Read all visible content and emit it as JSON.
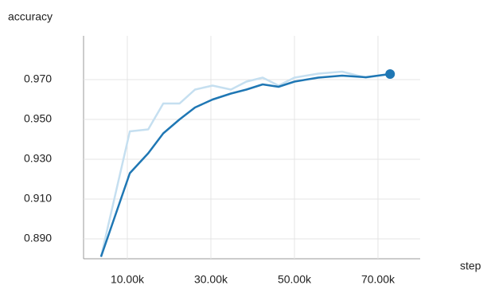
{
  "chart_data": {
    "type": "line",
    "title": "accuracy",
    "xlabel": "step",
    "x": [
      3700,
      10600,
      15000,
      18600,
      22500,
      26200,
      30400,
      34800,
      38500,
      42400,
      46200,
      50000,
      55700,
      61400,
      67100,
      72900
    ],
    "series": [
      {
        "color": "#c5dff0",
        "values": [
          0.881,
          0.944,
          0.945,
          0.958,
          0.958,
          0.965,
          0.967,
          0.965,
          0.969,
          0.971,
          0.967,
          0.971,
          0.973,
          0.974,
          0.971,
          0.973
        ]
      },
      {
        "color": "#1f77b4",
        "values": [
          0.881,
          0.923,
          0.933,
          0.943,
          0.95,
          0.956,
          0.96,
          0.963,
          0.965,
          0.9676,
          0.9664,
          0.969,
          0.971,
          0.972,
          0.9712,
          0.9728
        ]
      }
    ],
    "xlim": [
      0,
      80100
    ],
    "ylim": [
      0.88,
      0.992
    ],
    "xticks": [
      {
        "value": 10000,
        "label": "10.00k"
      },
      {
        "value": 30000,
        "label": "30.00k"
      },
      {
        "value": 50000,
        "label": "50.00k"
      },
      {
        "value": 70000,
        "label": "70.00k"
      }
    ],
    "yticks": [
      {
        "value": 0.89,
        "label": "0.890"
      },
      {
        "value": 0.91,
        "label": "0.910"
      },
      {
        "value": 0.93,
        "label": "0.930"
      },
      {
        "value": 0.95,
        "label": "0.950"
      },
      {
        "value": 0.97,
        "label": "0.970"
      }
    ],
    "grid": true
  }
}
